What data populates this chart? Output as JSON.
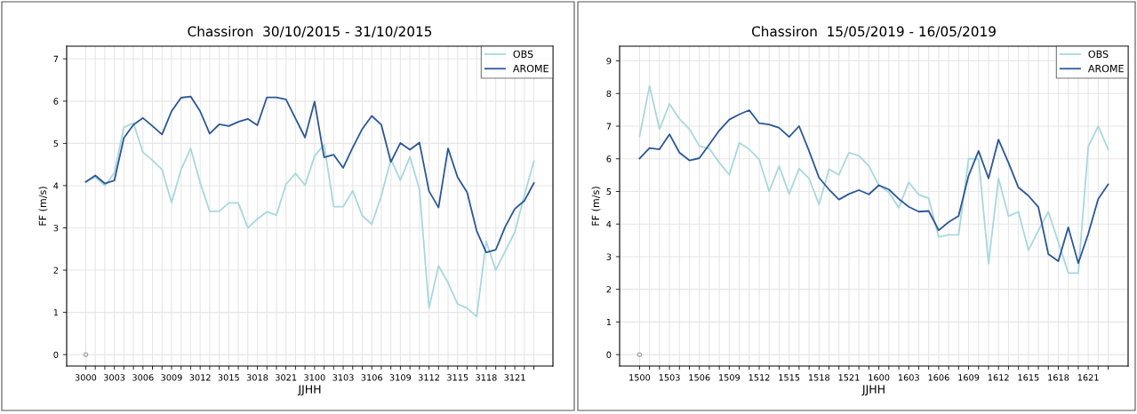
{
  "chart_data": [
    {
      "type": "line",
      "title": "Chassiron  30/10/2015 - 31/10/2015",
      "xlabel": "JJHH",
      "ylabel": "FF (m/s)",
      "categories": [
        "3000",
        null,
        null,
        "3003",
        null,
        null,
        "3006",
        null,
        null,
        "3009",
        null,
        null,
        "3012",
        null,
        null,
        "3015",
        null,
        null,
        "3018",
        null,
        null,
        "3021",
        null,
        null,
        "3100",
        null,
        null,
        "3103",
        null,
        null,
        "3106",
        null,
        null,
        "3109",
        null,
        null,
        "3112",
        null,
        null,
        "3115",
        null,
        null,
        "3118",
        null,
        null,
        "3121",
        null,
        null
      ],
      "ylim": [
        -0.27,
        7.3
      ],
      "yticks": [
        0,
        1,
        2,
        3,
        4,
        5,
        6,
        7
      ],
      "grid": true,
      "legend": "top right",
      "series": [
        {
          "name": "OBS",
          "color": "#a8d8dc",
          "values": [
            4.09,
            4.2,
            4.0,
            4.3,
            5.38,
            5.48,
            4.79,
            4.6,
            4.38,
            3.6,
            4.38,
            4.88,
            4.07,
            3.39,
            3.39,
            3.59,
            3.59,
            3.0,
            3.21,
            3.38,
            3.3,
            4.03,
            4.29,
            4.01,
            4.7,
            4.97,
            3.5,
            3.5,
            3.88,
            3.29,
            3.09,
            3.76,
            4.62,
            4.13,
            4.68,
            3.91,
            1.1,
            2.1,
            1.7,
            1.2,
            1.1,
            0.9,
            2.68,
            2.0,
            2.45,
            2.9,
            3.76,
            4.58
          ]
        },
        {
          "name": "AROME",
          "color": "#2b5797",
          "values": [
            4.09,
            4.24,
            4.05,
            4.12,
            5.13,
            5.44,
            5.6,
            5.41,
            5.21,
            5.76,
            6.08,
            6.11,
            5.76,
            5.23,
            5.45,
            5.41,
            5.51,
            5.58,
            5.43,
            6.09,
            6.09,
            6.04,
            5.59,
            5.14,
            5.99,
            4.67,
            4.73,
            4.42,
            4.9,
            5.34,
            5.65,
            5.44,
            4.56,
            5.01,
            4.85,
            5.02,
            3.87,
            3.48,
            4.88,
            4.2,
            3.84,
            2.93,
            2.42,
            2.48,
            3.03,
            3.45,
            3.64,
            4.06
          ]
        },
        {
          "type": "scatter",
          "color": "#999999",
          "values": [
            0,
            null,
            null,
            null,
            null,
            null,
            null,
            null,
            null,
            null,
            null,
            null,
            null,
            null,
            null,
            null,
            null,
            null,
            null,
            null,
            null,
            null,
            null,
            null,
            null,
            null,
            null,
            null,
            null,
            null,
            null,
            null,
            null,
            null,
            null,
            null,
            null,
            null,
            null,
            null,
            null,
            null,
            null,
            null,
            null,
            null,
            null,
            null
          ]
        }
      ]
    },
    {
      "type": "line",
      "title": "Chassiron  15/05/2019 - 16/05/2019",
      "xlabel": "JJHH",
      "ylabel": "FF (m/s)",
      "categories": [
        "1500",
        null,
        null,
        "1503",
        null,
        null,
        "1506",
        null,
        null,
        "1509",
        null,
        null,
        "1512",
        null,
        null,
        "1515",
        null,
        null,
        "1518",
        null,
        null,
        "1521",
        null,
        null,
        "1600",
        null,
        null,
        "1603",
        null,
        null,
        "1606",
        null,
        null,
        "1609",
        null,
        null,
        "1612",
        null,
        null,
        "1615",
        null,
        null,
        "1618",
        null,
        null,
        "1621",
        null,
        null
      ],
      "ylim": [
        -0.35,
        9.45
      ],
      "yticks": [
        0,
        1,
        2,
        3,
        4,
        5,
        6,
        7,
        8,
        9
      ],
      "grid": true,
      "legend": "top right",
      "series": [
        {
          "name": "OBS",
          "color": "#a8d8dc",
          "values": [
            6.69,
            8.23,
            6.91,
            7.68,
            7.22,
            6.91,
            6.39,
            6.31,
            5.88,
            5.51,
            6.49,
            6.29,
            5.98,
            5.0,
            5.78,
            4.92,
            5.7,
            5.4,
            4.6,
            5.68,
            5.51,
            6.19,
            6.09,
            5.78,
            5.19,
            4.97,
            4.5,
            5.28,
            4.9,
            4.79,
            3.6,
            3.67,
            3.67,
            6.0,
            6.0,
            2.79,
            5.4,
            4.24,
            4.38,
            3.2,
            3.8,
            4.38,
            3.45,
            2.5,
            2.5,
            6.37,
            7.0,
            6.29
          ]
        },
        {
          "name": "AROME",
          "color": "#2b5797",
          "values": [
            6.01,
            6.33,
            6.29,
            6.75,
            6.19,
            5.95,
            6.02,
            6.44,
            6.87,
            7.2,
            7.36,
            7.49,
            7.09,
            7.05,
            6.95,
            6.67,
            7.0,
            6.24,
            5.42,
            5.06,
            4.75,
            4.92,
            5.04,
            4.91,
            5.19,
            5.06,
            4.77,
            4.53,
            4.38,
            4.4,
            3.81,
            4.06,
            4.25,
            5.48,
            6.24,
            5.4,
            6.59,
            5.88,
            5.12,
            4.87,
            4.52,
            3.08,
            2.86,
            3.9,
            2.8,
            3.7,
            4.77,
            5.22
          ]
        },
        {
          "type": "scatter",
          "color": "#999999",
          "values": [
            0,
            null,
            null,
            null,
            null,
            null,
            null,
            null,
            null,
            null,
            null,
            null,
            null,
            null,
            null,
            null,
            null,
            null,
            null,
            null,
            null,
            null,
            null,
            null,
            null,
            null,
            null,
            null,
            null,
            null,
            null,
            null,
            null,
            null,
            null,
            null,
            null,
            null,
            null,
            null,
            null,
            null,
            null,
            null,
            null,
            null,
            null,
            null
          ]
        }
      ]
    }
  ]
}
